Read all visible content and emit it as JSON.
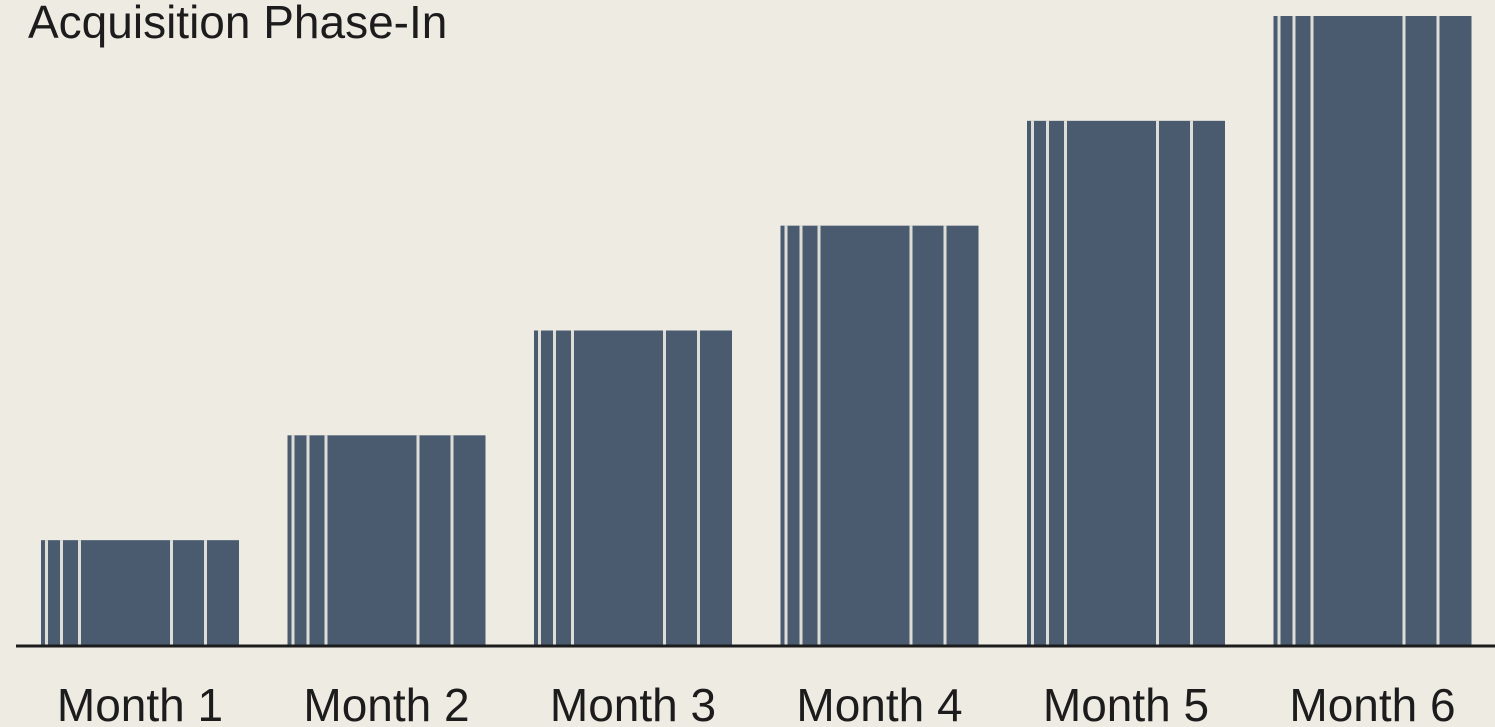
{
  "chart_data": {
    "type": "bar",
    "title": "Acquisition Phase-In",
    "categories": [
      "Month 1",
      "Month 2",
      "Month 3",
      "Month 4",
      "Month 5",
      "Month 6"
    ],
    "values": [
      1,
      2,
      3,
      4,
      5,
      6
    ],
    "xlabel": "",
    "ylabel": "",
    "ylim": [
      0,
      6
    ],
    "grid": false,
    "legend": "none",
    "colors": {
      "bar": "#4a5a6f",
      "bar_stripe": "#eeebe3",
      "axis": "#1c1c1c",
      "background": "#eeebe3",
      "text": "#1c1c1c"
    }
  }
}
